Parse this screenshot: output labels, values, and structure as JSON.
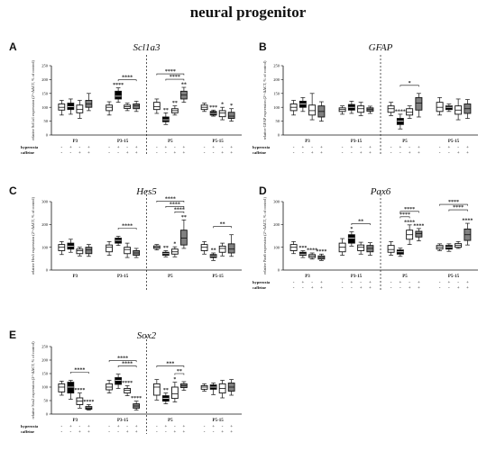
{
  "title": "neural progenitor",
  "legend_rows": [
    "hyperoxia",
    "caffeine"
  ],
  "row_signs": {
    "hyperoxia": [
      "-",
      "+",
      "-",
      "+"
    ],
    "caffeine": [
      "-",
      "-",
      "+",
      "+"
    ]
  },
  "colors": {
    "ctrl": "#ffffff",
    "hyper": "#000000",
    "caff": "#ffffff",
    "combo": "#808080"
  },
  "chart_data": [
    {
      "type": "box",
      "letter": "A",
      "title": "Scl1a3",
      "ylabel": "relative Scl1a3 expression (2^-ΔΔCT, % of control)",
      "ylim": [
        0,
        250
      ],
      "yticks": [
        "0",
        "50",
        "100",
        "150",
        "200",
        "250"
      ],
      "groups": [
        "P3",
        "P3-15",
        "P5",
        "P5-15"
      ],
      "series_order": [
        "control",
        "hyperoxia",
        "caffeine",
        "hyperoxia+caffeine"
      ],
      "boxes": [
        [
          [
            72,
            90,
            100,
            112,
            125
          ],
          [
            75,
            92,
            102,
            115,
            130
          ],
          [
            60,
            80,
            92,
            108,
            125
          ],
          [
            88,
            100,
            112,
            125,
            150
          ]
        ],
        [
          [
            72,
            88,
            100,
            108,
            120
          ],
          [
            118,
            130,
            140,
            158,
            170
          ],
          [
            88,
            96,
            102,
            108,
            115
          ],
          [
            85,
            95,
            105,
            112,
            122
          ]
        ],
        [
          [
            78,
            92,
            102,
            118,
            130
          ],
          [
            38,
            48,
            55,
            65,
            80
          ],
          [
            72,
            80,
            88,
            95,
            105
          ],
          [
            118,
            130,
            145,
            158,
            172
          ]
        ],
        [
          [
            85,
            92,
            100,
            108,
            115
          ],
          [
            68,
            72,
            78,
            85,
            90
          ],
          [
            55,
            66,
            80,
            88,
            100
          ],
          [
            50,
            60,
            68,
            82,
            95
          ]
        ]
      ],
      "sig": [
        {
          "group": 0,
          "marks": [
            "",
            "",
            "",
            ""
          ]
        },
        {
          "group": 1,
          "marks": [
            "",
            "****",
            "",
            ""
          ]
        },
        {
          "group": 2,
          "marks": [
            "",
            "**",
            "**",
            "**"
          ]
        },
        {
          "group": 3,
          "marks": [
            "",
            "***",
            "*",
            "*"
          ]
        }
      ],
      "brackets": [
        {
          "group": 1,
          "from": 1,
          "to": 3,
          "level": 0,
          "label": "****"
        },
        {
          "group": 2,
          "from": 0,
          "to": 3,
          "level": 1,
          "label": "****"
        },
        {
          "group": 2,
          "from": 1,
          "to": 3,
          "level": 0,
          "label": "****"
        }
      ]
    },
    {
      "type": "box",
      "letter": "B",
      "title": "GFAP",
      "ylabel": "relative GFAP expression (2^-ΔΔCT, % of control)",
      "ylim": [
        0,
        250
      ],
      "yticks": [
        "0",
        "50",
        "100",
        "150",
        "200",
        "250"
      ],
      "groups": [
        "P3",
        "P3-15",
        "P5",
        "P5-15"
      ],
      "series_order": [
        "control",
        "hyperoxia",
        "caffeine",
        "hyperoxia+caffeine"
      ],
      "boxes": [
        [
          [
            72,
            88,
            100,
            112,
            125
          ],
          [
            85,
            100,
            112,
            122,
            135
          ],
          [
            55,
            72,
            88,
            108,
            150
          ],
          [
            50,
            65,
            85,
            105,
            120
          ]
        ],
        [
          [
            75,
            85,
            92,
            98,
            105
          ],
          [
            78,
            90,
            100,
            110,
            122
          ],
          [
            70,
            82,
            95,
            105,
            118
          ],
          [
            78,
            86,
            92,
            98,
            104
          ]
        ],
        [
          [
            70,
            82,
            95,
            105,
            118
          ],
          [
            22,
            38,
            50,
            60,
            75
          ],
          [
            60,
            72,
            82,
            95,
            105
          ],
          [
            65,
            90,
            115,
            135,
            150
          ]
        ],
        [
          [
            72,
            85,
            100,
            118,
            135
          ],
          [
            85,
            92,
            100,
            105,
            112
          ],
          [
            55,
            75,
            90,
            105,
            130
          ],
          [
            60,
            78,
            95,
            112,
            128
          ]
        ]
      ],
      "sig": [
        {
          "group": 0,
          "marks": [
            "",
            "",
            "",
            ""
          ]
        },
        {
          "group": 1,
          "marks": [
            "",
            "",
            "",
            ""
          ]
        },
        {
          "group": 2,
          "marks": [
            "",
            "****",
            "",
            ""
          ]
        },
        {
          "group": 3,
          "marks": [
            "",
            "",
            "",
            ""
          ]
        }
      ],
      "brackets": [
        {
          "group": 2,
          "from": 1,
          "to": 3,
          "level": 0,
          "label": "*"
        }
      ]
    },
    {
      "type": "box",
      "letter": "C",
      "title": "Hes5",
      "ylabel": "relative Hes5 expression (2^-ΔΔCT, % of control)",
      "ylim": [
        0,
        300
      ],
      "yticks": [
        "0",
        "100",
        "200",
        "300"
      ],
      "groups": [
        "P3",
        "P3-15",
        "P5",
        "P5-15"
      ],
      "series_order": [
        "control",
        "hyperoxia",
        "caffeine",
        "hyperoxia+caffeine"
      ],
      "boxes": [
        [
          [
            68,
            85,
            100,
            112,
            125
          ],
          [
            78,
            92,
            105,
            118,
            135
          ],
          [
            62,
            72,
            85,
            92,
            100
          ],
          [
            60,
            72,
            88,
            100,
            112
          ]
        ],
        [
          [
            65,
            80,
            100,
            110,
            125
          ],
          [
            108,
            118,
            130,
            140,
            148
          ],
          [
            55,
            72,
            90,
            100,
            118
          ],
          [
            55,
            65,
            75,
            85,
            95
          ]
        ],
        [
          [
            88,
            95,
            100,
            106,
            112
          ],
          [
            58,
            65,
            72,
            78,
            85
          ],
          [
            58,
            70,
            80,
            92,
            102
          ],
          [
            95,
            110,
            140,
            175,
            220
          ]
        ],
        [
          [
            70,
            85,
            100,
            112,
            125
          ],
          [
            42,
            55,
            62,
            68,
            75
          ],
          [
            62,
            78,
            95,
            105,
            118
          ],
          [
            60,
            75,
            92,
            115,
            155
          ]
        ]
      ],
      "sig": [
        {
          "group": 0,
          "marks": [
            "",
            "",
            "",
            ""
          ]
        },
        {
          "group": 1,
          "marks": [
            "",
            "",
            "",
            ""
          ]
        },
        {
          "group": 2,
          "marks": [
            "",
            "**",
            "*",
            "**"
          ]
        },
        {
          "group": 3,
          "marks": [
            "",
            "**",
            "",
            ""
          ]
        }
      ],
      "brackets": [
        {
          "group": 1,
          "from": 1,
          "to": 3,
          "level": 0,
          "label": "****"
        },
        {
          "group": 2,
          "from": 0,
          "to": 3,
          "level": 2,
          "label": "****"
        },
        {
          "group": 2,
          "from": 1,
          "to": 3,
          "level": 1,
          "label": "****"
        },
        {
          "group": 2,
          "from": 2,
          "to": 3,
          "level": 0,
          "label": "****"
        },
        {
          "group": 3,
          "from": 1,
          "to": 3,
          "level": 0,
          "label": "**"
        }
      ]
    },
    {
      "type": "box",
      "letter": "D",
      "title": "Pax6",
      "ylabel": "relative Pax6 expression (2^-ΔΔCT, % of control)",
      "ylim": [
        0,
        300
      ],
      "yticks": [
        "0",
        "100",
        "200",
        "300"
      ],
      "groups": [
        "P3",
        "P3-15",
        "P5",
        "P5-15"
      ],
      "series_order": [
        "control",
        "hyperoxia",
        "caffeine",
        "hyperoxia+caffeine"
      ],
      "boxes": [
        [
          [
            72,
            85,
            100,
            112,
            125
          ],
          [
            55,
            65,
            70,
            78,
            85
          ],
          [
            48,
            55,
            62,
            68,
            75
          ],
          [
            42,
            48,
            55,
            62,
            70
          ]
        ],
        [
          [
            65,
            80,
            100,
            118,
            138
          ],
          [
            105,
            118,
            140,
            155,
            168
          ],
          [
            70,
            85,
            100,
            110,
            122
          ],
          [
            65,
            80,
            95,
            108,
            120
          ]
        ],
        [
          [
            65,
            78,
            90,
            108,
            125
          ],
          [
            60,
            70,
            80,
            88,
            96
          ],
          [
            112,
            135,
            155,
            175,
            198
          ],
          [
            128,
            145,
            160,
            170,
            182
          ]
        ],
        [
          [
            85,
            92,
            100,
            108,
            115
          ],
          [
            82,
            92,
            100,
            108,
            115
          ],
          [
            95,
            100,
            108,
            116,
            125
          ],
          [
            110,
            130,
            155,
            180,
            205
          ]
        ]
      ],
      "sig": [
        {
          "group": 0,
          "marks": [
            "",
            "***",
            "****",
            "****"
          ]
        },
        {
          "group": 1,
          "marks": [
            "",
            "*",
            "",
            ""
          ]
        },
        {
          "group": 2,
          "marks": [
            "",
            "",
            "****",
            "****"
          ]
        },
        {
          "group": 3,
          "marks": [
            "",
            "",
            "",
            "****"
          ]
        }
      ],
      "brackets": [
        {
          "group": 1,
          "from": 1,
          "to": 3,
          "level": 0,
          "label": "**"
        },
        {
          "group": 2,
          "from": 1,
          "to": 3,
          "level": 1,
          "label": "****"
        },
        {
          "group": 2,
          "from": 1,
          "to": 2,
          "level": 0,
          "label": "****"
        },
        {
          "group": 3,
          "from": 0,
          "to": 3,
          "level": 2,
          "label": "****"
        },
        {
          "group": 3,
          "from": 1,
          "to": 3,
          "level": 1,
          "label": "****"
        }
      ]
    },
    {
      "type": "box",
      "letter": "E",
      "title": "Sox2",
      "ylabel": "relative Sox2 expression (2^-ΔΔCT, % of control)",
      "ylim": [
        0,
        250
      ],
      "yticks": [
        "0",
        "50",
        "100",
        "150",
        "200",
        "250"
      ],
      "groups": [
        "P3",
        "P3-15",
        "P5",
        "P5-15"
      ],
      "series_order": [
        "control",
        "hyperoxia",
        "caffeine",
        "hyperoxia+caffeine"
      ],
      "boxes": [
        [
          [
            70,
            82,
            100,
            112,
            122
          ],
          [
            55,
            78,
            100,
            118,
            125
          ],
          [
            22,
            35,
            48,
            60,
            78
          ],
          [
            15,
            18,
            22,
            28,
            35
          ]
        ],
        [
          [
            78,
            90,
            100,
            112,
            125
          ],
          [
            95,
            110,
            125,
            135,
            148
          ],
          [
            68,
            78,
            88,
            95,
            105
          ],
          [
            15,
            22,
            30,
            38,
            48
          ]
        ],
        [
          [
            52,
            70,
            100,
            112,
            128
          ],
          [
            38,
            48,
            58,
            68,
            78
          ],
          [
            45,
            58,
            75,
            100,
            118
          ],
          [
            88,
            98,
            105,
            112,
            120
          ]
        ],
        [
          [
            85,
            92,
            100,
            105,
            112
          ],
          [
            72,
            92,
            100,
            108,
            115
          ],
          [
            60,
            78,
            95,
            112,
            125
          ],
          [
            70,
            85,
            100,
            115,
            128
          ]
        ]
      ],
      "sig": [
        {
          "group": 0,
          "marks": [
            "",
            "",
            "****",
            "****"
          ]
        },
        {
          "group": 1,
          "marks": [
            "",
            "",
            "****",
            "****"
          ]
        },
        {
          "group": 2,
          "marks": [
            "",
            "**",
            "*",
            ""
          ]
        },
        {
          "group": 3,
          "marks": [
            "",
            "",
            "",
            ""
          ]
        }
      ],
      "brackets": [
        {
          "group": 0,
          "from": 1,
          "to": 3,
          "level": 0,
          "label": "****"
        },
        {
          "group": 1,
          "from": 0,
          "to": 3,
          "level": 1,
          "label": "****"
        },
        {
          "group": 1,
          "from": 1,
          "to": 3,
          "level": 0,
          "label": "****"
        },
        {
          "group": 2,
          "from": 0,
          "to": 3,
          "level": 1,
          "label": "***"
        },
        {
          "group": 2,
          "from": 2,
          "to": 3,
          "level": 0,
          "label": "**"
        }
      ]
    }
  ]
}
